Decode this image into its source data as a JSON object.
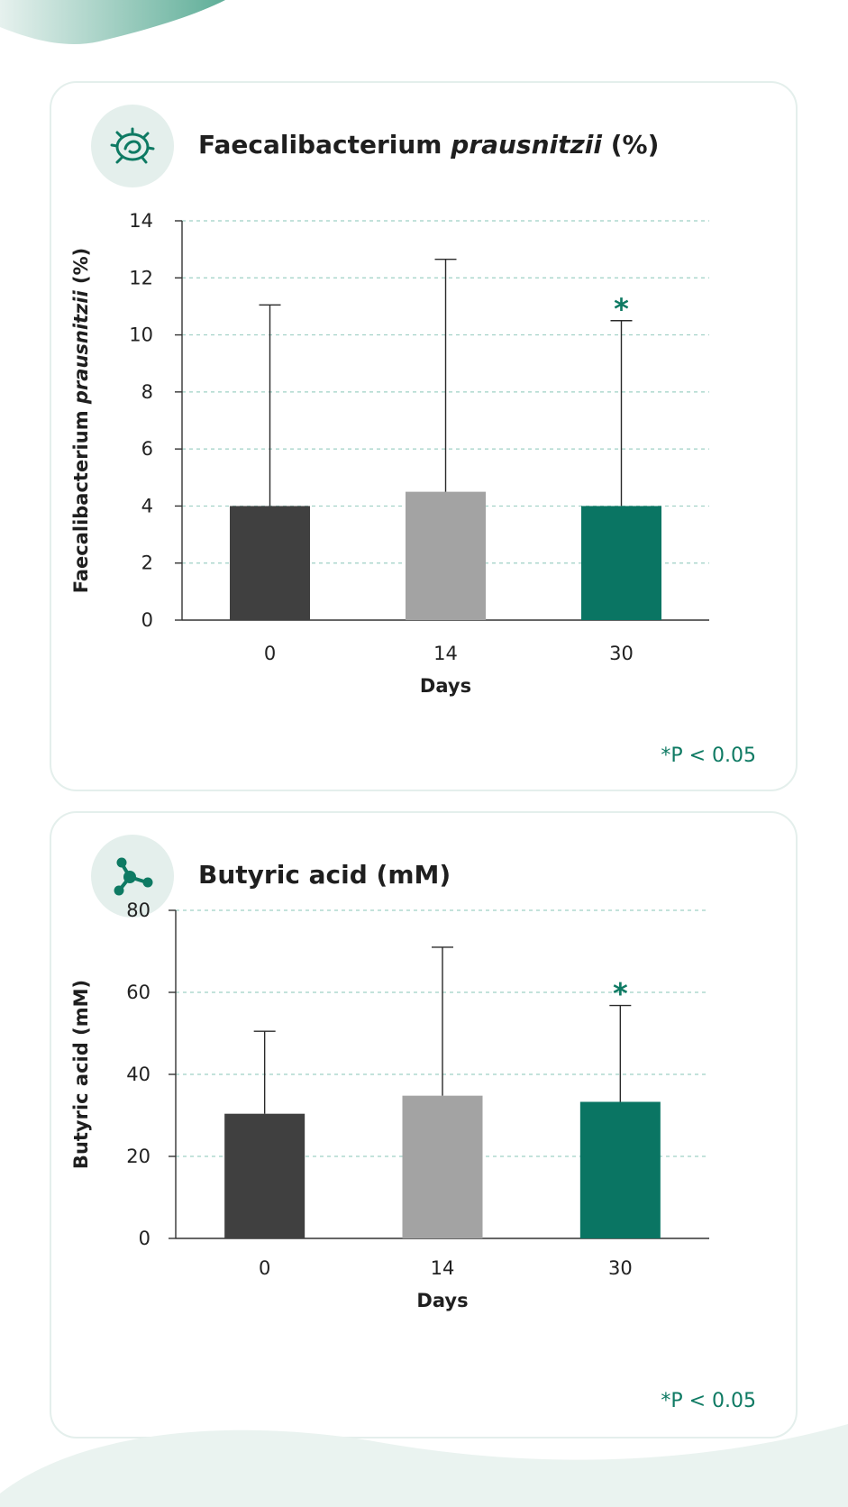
{
  "colors": {
    "day0": "#404040",
    "day14": "#a3a3a3",
    "day30": "#0a7563",
    "accent": "#0e7a63",
    "grid": "#9fd0c5",
    "icon_bg": "#e4efec"
  },
  "cards": [
    {
      "icon": "bacteria-icon",
      "title_main": "Faecalibacterium ",
      "title_italic": "prausnitzii",
      "title_unit": " (%)",
      "sig_note": "*P < 0.05"
    },
    {
      "icon": "molecule-icon",
      "title_main": "Butyric acid (mM)",
      "title_italic": "",
      "title_unit": "",
      "sig_note": "*P < 0.05"
    }
  ],
  "chart_data": [
    {
      "type": "bar",
      "ylabel_plain": "Faecalibacterium",
      "ylabel_italic": "prausnitzii",
      "ylabel_unit": " (%)",
      "xlabel": "Days",
      "categories": [
        "0",
        "14",
        "30"
      ],
      "values": [
        4.0,
        4.5,
        4.0
      ],
      "error_upper": [
        11.05,
        12.65,
        10.5
      ],
      "significant": [
        false,
        false,
        true
      ],
      "significance_marker": "*",
      "ylim": [
        0,
        14
      ],
      "yticks": [
        0,
        2,
        4,
        6,
        8,
        10,
        12,
        14
      ],
      "grid": true
    },
    {
      "type": "bar",
      "ylabel_plain": "Butyric acid (mM)",
      "ylabel_italic": "",
      "ylabel_unit": "",
      "xlabel": "Days",
      "categories": [
        "0",
        "14",
        "30"
      ],
      "values": [
        30.4,
        34.8,
        33.3
      ],
      "error_upper": [
        50.5,
        71.0,
        56.8
      ],
      "significant": [
        false,
        false,
        true
      ],
      "significance_marker": "*",
      "ylim": [
        0,
        80
      ],
      "yticks": [
        0,
        20,
        40,
        60,
        80
      ],
      "grid": true
    }
  ]
}
